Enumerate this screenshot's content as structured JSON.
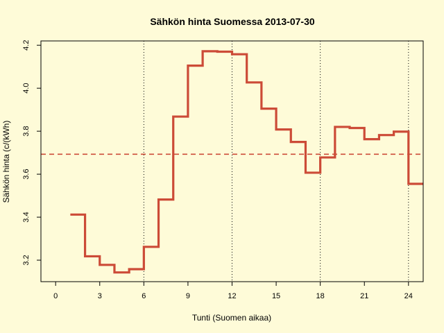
{
  "colors": {
    "background": "#fefbd8",
    "price_line": "#cc4b37",
    "mean_line": "#cc4b37",
    "axis": "#000000"
  },
  "chart_data": {
    "type": "line",
    "title": "Sähkön hinta Suomessa 2013-07-30",
    "xlabel": "Tunti (Suomen aikaa)",
    "ylabel": "Sähkön hinta (c/(kWh)",
    "xlim": [
      -1,
      25
    ],
    "ylim": [
      3.1,
      4.22
    ],
    "x_ticks": [
      0,
      3,
      6,
      9,
      12,
      15,
      18,
      21,
      24
    ],
    "y_ticks": [
      3.2,
      3.4,
      3.6,
      3.8,
      4.0,
      4.2
    ],
    "vertical_gridlines": [
      6,
      12,
      18,
      24
    ],
    "mean_line": 3.693,
    "series": [
      {
        "step": "post",
        "x": [
          1,
          2,
          3,
          4,
          5,
          6,
          7,
          8,
          9,
          10,
          11,
          12,
          13,
          14,
          15,
          16,
          17,
          18,
          19,
          20,
          21,
          22,
          23,
          24,
          25
        ],
        "values": [
          3.412,
          3.218,
          3.178,
          3.143,
          3.158,
          3.262,
          3.482,
          3.868,
          4.105,
          4.172,
          4.17,
          4.158,
          4.027,
          3.905,
          3.808,
          3.75,
          3.607,
          3.678,
          3.82,
          3.815,
          3.763,
          3.782,
          3.798,
          3.555,
          3.555
        ]
      }
    ]
  }
}
